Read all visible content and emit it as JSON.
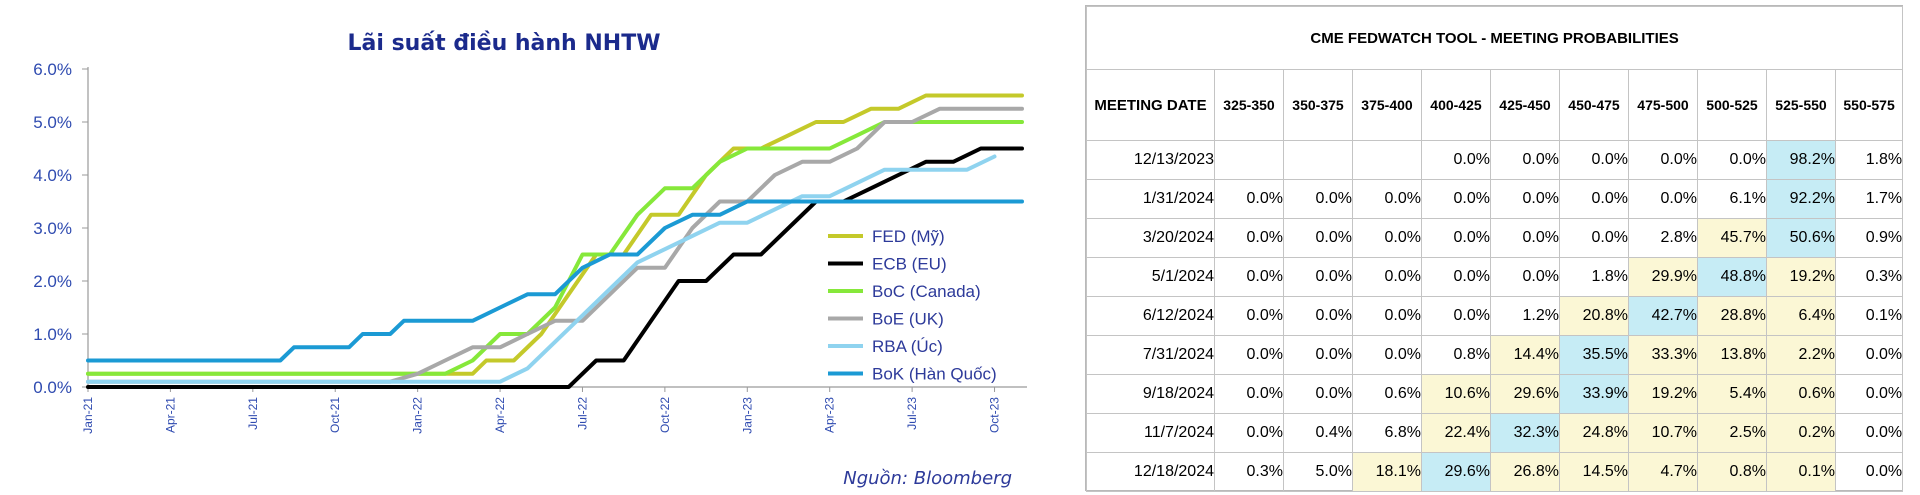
{
  "chart_data": {
    "type": "line",
    "title": "Lãi suất điều hành NHTW",
    "source": "Nguồn: Bloomberg",
    "yticks": [
      "6.0%",
      "5.0%",
      "4.0%",
      "3.0%",
      "2.0%",
      "1.0%",
      "0.0%"
    ],
    "ylim": [
      0,
      6
    ],
    "xlim": [
      0,
      34
    ],
    "xticks": [
      {
        "label": "Jan-21",
        "m": 0
      },
      {
        "label": "Apr-21",
        "m": 3
      },
      {
        "label": "Jul-21",
        "m": 6
      },
      {
        "label": "Oct-21",
        "m": 9
      },
      {
        "label": "Jan-22",
        "m": 12
      },
      {
        "label": "Apr-22",
        "m": 15
      },
      {
        "label": "Jul-22",
        "m": 18
      },
      {
        "label": "Oct-22",
        "m": 21
      },
      {
        "label": "Jan-23",
        "m": 24
      },
      {
        "label": "Apr-23",
        "m": 27
      },
      {
        "label": "Jul-23",
        "m": 30
      },
      {
        "label": "Oct-23",
        "m": 33
      }
    ],
    "grid": false,
    "legend_position": "right",
    "series": [
      {
        "name": "FED (Mỹ)",
        "color": "#c4c92a",
        "points": [
          [
            0,
            0.25
          ],
          [
            14,
            0.25
          ],
          [
            14.5,
            0.5
          ],
          [
            15.5,
            0.5
          ],
          [
            16.5,
            1.0
          ],
          [
            17.5,
            1.75
          ],
          [
            18.5,
            2.5
          ],
          [
            19.5,
            2.5
          ],
          [
            20.5,
            3.25
          ],
          [
            21.5,
            3.25
          ],
          [
            22.5,
            4.0
          ],
          [
            23.5,
            4.5
          ],
          [
            24.5,
            4.5
          ],
          [
            25.5,
            4.75
          ],
          [
            26.5,
            5.0
          ],
          [
            27.5,
            5.0
          ],
          [
            28.5,
            5.25
          ],
          [
            29.5,
            5.25
          ],
          [
            30.5,
            5.5
          ],
          [
            34,
            5.5
          ]
        ]
      },
      {
        "name": "ECB (EU)",
        "color": "#000000",
        "points": [
          [
            0,
            0.0
          ],
          [
            17.5,
            0.0
          ],
          [
            18.5,
            0.5
          ],
          [
            19.5,
            0.5
          ],
          [
            20.5,
            1.25
          ],
          [
            21.5,
            2.0
          ],
          [
            22.5,
            2.0
          ],
          [
            23.5,
            2.5
          ],
          [
            24.5,
            2.5
          ],
          [
            25.5,
            3.0
          ],
          [
            26.5,
            3.5
          ],
          [
            27.5,
            3.5
          ],
          [
            28.5,
            3.75
          ],
          [
            29.5,
            4.0
          ],
          [
            30.5,
            4.25
          ],
          [
            31.5,
            4.25
          ],
          [
            32.5,
            4.5
          ],
          [
            34,
            4.5
          ]
        ]
      },
      {
        "name": "BoC (Canada)",
        "color": "#86e83a",
        "points": [
          [
            0,
            0.25
          ],
          [
            13,
            0.25
          ],
          [
            14,
            0.5
          ],
          [
            15,
            1.0
          ],
          [
            16,
            1.0
          ],
          [
            17,
            1.5
          ],
          [
            18,
            2.5
          ],
          [
            19,
            2.5
          ],
          [
            20,
            3.25
          ],
          [
            21,
            3.75
          ],
          [
            22,
            3.75
          ],
          [
            23,
            4.25
          ],
          [
            24,
            4.5
          ],
          [
            27,
            4.5
          ],
          [
            28,
            4.75
          ],
          [
            29,
            5.0
          ],
          [
            34,
            5.0
          ]
        ]
      },
      {
        "name": "BoE (UK)",
        "color": "#a8a8a8",
        "points": [
          [
            0,
            0.1
          ],
          [
            11,
            0.1
          ],
          [
            12,
            0.25
          ],
          [
            13,
            0.5
          ],
          [
            14,
            0.75
          ],
          [
            15,
            0.75
          ],
          [
            16,
            1.0
          ],
          [
            17,
            1.25
          ],
          [
            18,
            1.25
          ],
          [
            19,
            1.75
          ],
          [
            20,
            2.25
          ],
          [
            21,
            2.25
          ],
          [
            22,
            3.0
          ],
          [
            23,
            3.5
          ],
          [
            24,
            3.5
          ],
          [
            25,
            4.0
          ],
          [
            26,
            4.25
          ],
          [
            27,
            4.25
          ],
          [
            28,
            4.5
          ],
          [
            29,
            5.0
          ],
          [
            30,
            5.0
          ],
          [
            31,
            5.25
          ],
          [
            34,
            5.25
          ]
        ]
      },
      {
        "name": "RBA (Úc)",
        "color": "#8fd3ef",
        "points": [
          [
            0,
            0.1
          ],
          [
            15,
            0.1
          ],
          [
            16,
            0.35
          ],
          [
            17,
            0.85
          ],
          [
            18,
            1.35
          ],
          [
            19,
            1.85
          ],
          [
            20,
            2.35
          ],
          [
            21,
            2.6
          ],
          [
            22,
            2.85
          ],
          [
            23,
            3.1
          ],
          [
            24,
            3.1
          ],
          [
            25,
            3.35
          ],
          [
            26,
            3.6
          ],
          [
            27,
            3.6
          ],
          [
            28,
            3.85
          ],
          [
            29,
            4.1
          ],
          [
            32,
            4.1
          ],
          [
            33,
            4.35
          ]
        ]
      },
      {
        "name": "BoK (Hàn Quốc)",
        "color": "#1b9ad4",
        "points": [
          [
            0,
            0.5
          ],
          [
            7,
            0.5
          ],
          [
            7.5,
            0.75
          ],
          [
            9.5,
            0.75
          ],
          [
            10,
            1.0
          ],
          [
            11,
            1.0
          ],
          [
            11.5,
            1.25
          ],
          [
            13,
            1.25
          ],
          [
            14,
            1.25
          ],
          [
            15,
            1.5
          ],
          [
            16,
            1.75
          ],
          [
            17,
            1.75
          ],
          [
            18,
            2.25
          ],
          [
            19,
            2.5
          ],
          [
            20,
            2.5
          ],
          [
            21,
            3.0
          ],
          [
            22,
            3.25
          ],
          [
            23,
            3.25
          ],
          [
            24,
            3.5
          ],
          [
            34,
            3.5
          ]
        ]
      }
    ]
  },
  "table": {
    "title": "CME FEDWATCH TOOL - MEETING PROBABILITIES",
    "date_header": "MEETING DATE",
    "columns": [
      "325-350",
      "350-375",
      "375-400",
      "400-425",
      "425-450",
      "450-475",
      "475-500",
      "500-525",
      "525-550",
      "550-575"
    ],
    "rows": [
      {
        "date": "12/13/2023",
        "values": [
          "",
          "",
          "",
          "0.0%",
          "0.0%",
          "0.0%",
          "0.0%",
          "0.0%",
          "98.2%",
          "1.8%"
        ],
        "styles": [
          "",
          "",
          "",
          "",
          "",
          "",
          "",
          "",
          "b",
          ""
        ]
      },
      {
        "date": "1/31/2024",
        "values": [
          "0.0%",
          "0.0%",
          "0.0%",
          "0.0%",
          "0.0%",
          "0.0%",
          "0.0%",
          "6.1%",
          "92.2%",
          "1.7%"
        ],
        "styles": [
          "",
          "",
          "",
          "",
          "",
          "",
          "",
          "",
          "b",
          ""
        ]
      },
      {
        "date": "3/20/2024",
        "values": [
          "0.0%",
          "0.0%",
          "0.0%",
          "0.0%",
          "0.0%",
          "0.0%",
          "2.8%",
          "45.7%",
          "50.6%",
          "0.9%"
        ],
        "styles": [
          "",
          "",
          "",
          "",
          "",
          "",
          "",
          "y",
          "b",
          ""
        ]
      },
      {
        "date": "5/1/2024",
        "values": [
          "0.0%",
          "0.0%",
          "0.0%",
          "0.0%",
          "0.0%",
          "1.8%",
          "29.9%",
          "48.8%",
          "19.2%",
          "0.3%"
        ],
        "styles": [
          "",
          "",
          "",
          "",
          "",
          "",
          "y",
          "b",
          "y",
          ""
        ]
      },
      {
        "date": "6/12/2024",
        "values": [
          "0.0%",
          "0.0%",
          "0.0%",
          "0.0%",
          "1.2%",
          "20.8%",
          "42.7%",
          "28.8%",
          "6.4%",
          "0.1%"
        ],
        "styles": [
          "",
          "",
          "",
          "",
          "",
          "y",
          "b",
          "y",
          "y",
          ""
        ]
      },
      {
        "date": "7/31/2024",
        "values": [
          "0.0%",
          "0.0%",
          "0.0%",
          "0.8%",
          "14.4%",
          "35.5%",
          "33.3%",
          "13.8%",
          "2.2%",
          "0.0%"
        ],
        "styles": [
          "",
          "",
          "",
          "",
          "y",
          "b",
          "y",
          "y",
          "y",
          ""
        ]
      },
      {
        "date": "9/18/2024",
        "values": [
          "0.0%",
          "0.0%",
          "0.6%",
          "10.6%",
          "29.6%",
          "33.9%",
          "19.2%",
          "5.4%",
          "0.6%",
          "0.0%"
        ],
        "styles": [
          "",
          "",
          "",
          "y",
          "y",
          "b",
          "y",
          "y",
          "y",
          ""
        ]
      },
      {
        "date": "11/7/2024",
        "values": [
          "0.0%",
          "0.4%",
          "6.8%",
          "22.4%",
          "32.3%",
          "24.8%",
          "10.7%",
          "2.5%",
          "0.2%",
          "0.0%"
        ],
        "styles": [
          "",
          "",
          "",
          "y",
          "b",
          "y",
          "y",
          "y",
          "y",
          ""
        ]
      },
      {
        "date": "12/18/2024",
        "values": [
          "0.3%",
          "5.0%",
          "18.1%",
          "29.6%",
          "26.8%",
          "14.5%",
          "4.7%",
          "0.8%",
          "0.1%",
          "0.0%"
        ],
        "styles": [
          "",
          "",
          "y",
          "b",
          "y",
          "y",
          "y",
          "y",
          "y",
          ""
        ]
      }
    ]
  }
}
